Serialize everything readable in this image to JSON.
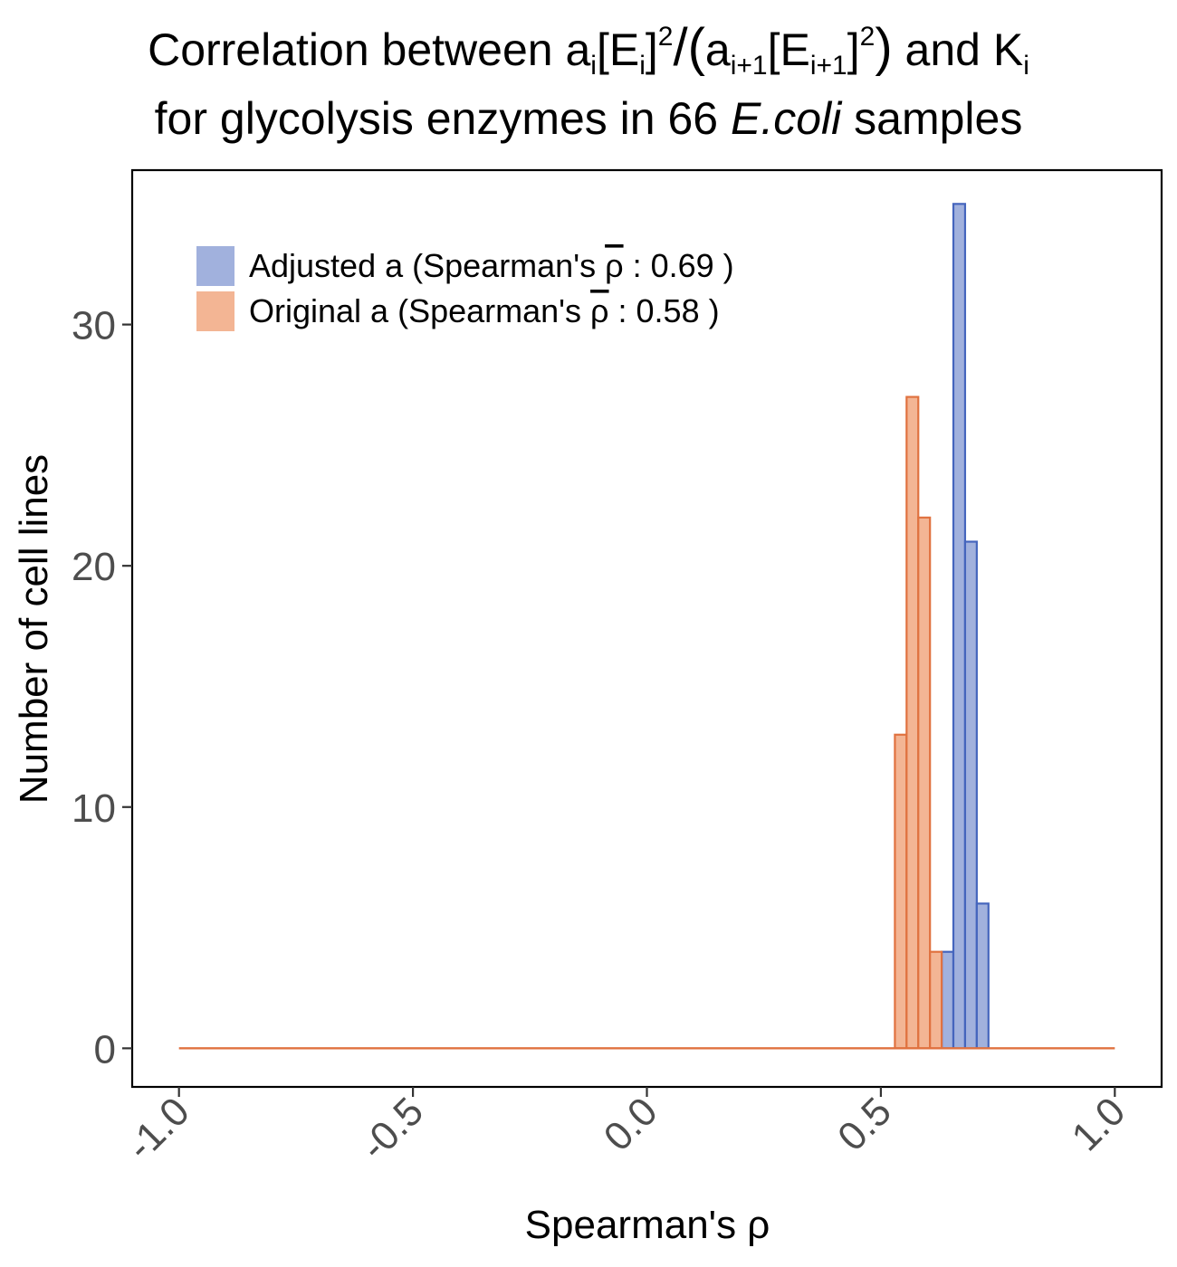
{
  "chart_data": {
    "type": "bar",
    "title_line1": {
      "prefix": "Correlation between a",
      "sub_i": "i",
      "bracket_e": "[E",
      "close_sq": "]",
      "sup_2": "2",
      "slash": "/",
      "open_paren": "(a",
      "sub_i1": "i+1",
      "close_paren": ")",
      "suffix": " and K"
    },
    "title_line2": {
      "prefix": "for glycolysis enzymes in 66 ",
      "italic": "E.coli",
      "suffix": " samples"
    },
    "xlabel": "Spearman's  ρ",
    "ylabel": "Number of cell lines",
    "xlim": [
      -1.1,
      1.1
    ],
    "ylim": [
      -1.6,
      36.4
    ],
    "x_ticks": [
      -1.0,
      -0.5,
      0.0,
      0.5,
      1.0
    ],
    "x_tick_labels": [
      "-1.0",
      "-0.5",
      "0.0",
      "0.5",
      "1.0"
    ],
    "y_ticks": [
      0,
      10,
      20,
      30
    ],
    "y_tick_labels": [
      "0",
      "10",
      "20",
      "30"
    ],
    "bin_width": 0.025,
    "baseline_range": [
      -1.0,
      1.0
    ],
    "legend_position": "top-left",
    "grid": false,
    "series": [
      {
        "name": "Adjusted a (Spearman's  ρ̄ : 0.69 )",
        "legend_prefix": "Adjusted a (Spearman's  ",
        "legend_rho": "ρ",
        "legend_suffix": " : 0.69 )",
        "fill": "#a1b1dd",
        "stroke": "#4565bd",
        "bins": [
          {
            "x": 0.6425,
            "count": 4
          },
          {
            "x": 0.6675,
            "count": 35
          },
          {
            "x": 0.6925,
            "count": 21
          },
          {
            "x": 0.7175,
            "count": 6
          }
        ]
      },
      {
        "name": "Original a (Spearman's  ρ̄ : 0.58 )",
        "legend_prefix": "Original a (Spearman's  ",
        "legend_rho": "ρ",
        "legend_suffix": " : 0.58 )",
        "fill": "#f3b594",
        "stroke": "#e07240",
        "bins": [
          {
            "x": 0.5425,
            "count": 13
          },
          {
            "x": 0.5675,
            "count": 27
          },
          {
            "x": 0.5925,
            "count": 22
          },
          {
            "x": 0.6175,
            "count": 4
          }
        ]
      }
    ]
  }
}
